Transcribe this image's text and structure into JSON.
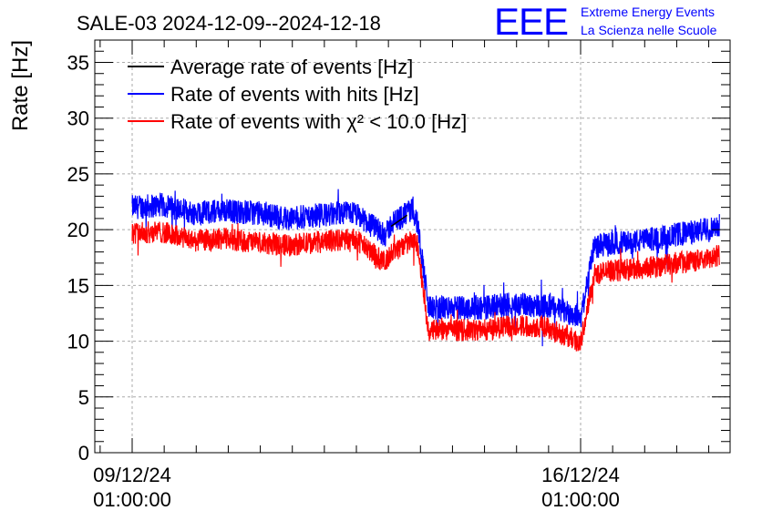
{
  "chart_data": {
    "type": "line",
    "title": "SALE-03 2024-12-09--2024-12-18",
    "ylabel": "Rate [Hz]",
    "xlabel": "",
    "ylim": [
      0,
      37
    ],
    "yticks": [
      0,
      5,
      10,
      15,
      20,
      25,
      30,
      35
    ],
    "grid": true,
    "legend_position": "top-left",
    "xlim": [
      "2024-12-08T11:00:00",
      "2024-12-18T09:00:00"
    ],
    "x_ticks": [
      {
        "x": "2024-12-09T01:00:00",
        "label_date": "09/12/24",
        "label_time": "01:00:00"
      },
      {
        "x": "2024-12-16T01:00:00",
        "label_date": "16/12/24",
        "label_time": "01:00:00"
      }
    ],
    "series": [
      {
        "name": "Rate of events with hits [Hz]",
        "color": "#0000ff",
        "x": [
          "2024-12-09T01:00:00",
          "2024-12-09T12:00:00",
          "2024-12-10T00:00:00",
          "2024-12-10T12:00:00",
          "2024-12-11T00:00:00",
          "2024-12-11T12:00:00",
          "2024-12-12T00:00:00",
          "2024-12-12T12:00:00",
          "2024-12-13T00:00:00",
          "2024-12-13T02:00:00",
          "2024-12-13T10:00:00",
          "2024-12-13T12:00:00",
          "2024-12-13T16:00:00",
          "2024-12-14T12:00:00",
          "2024-12-15T00:00:00",
          "2024-12-15T12:00:00",
          "2024-12-16T00:00:00",
          "2024-12-16T01:00:00",
          "2024-12-16T06:00:00",
          "2024-12-16T12:00:00",
          "2024-12-17T00:00:00",
          "2024-12-17T12:00:00",
          "2024-12-18T00:00:00",
          "2024-12-18T05:00:00"
        ],
        "values": [
          22.0,
          22.2,
          21.5,
          21.7,
          21.5,
          21.0,
          21.3,
          21.5,
          19.5,
          20.5,
          21.8,
          20.5,
          13.0,
          13.0,
          13.3,
          13.2,
          12.3,
          12.0,
          18.5,
          18.7,
          19.0,
          19.5,
          20.0,
          20.5
        ]
      },
      {
        "name": "Average rate of events [Hz]",
        "color": "#000000",
        "x": [
          "2024-12-13T02:00:00",
          "2024-12-13T08:00:00"
        ],
        "values": [
          20.3,
          21.3
        ]
      },
      {
        "name": "Rate of events with χ² < 10.0 [Hz]",
        "color": "#ff0000",
        "x": [
          "2024-12-09T01:00:00",
          "2024-12-09T12:00:00",
          "2024-12-10T00:00:00",
          "2024-12-10T12:00:00",
          "2024-12-11T00:00:00",
          "2024-12-11T12:00:00",
          "2024-12-12T00:00:00",
          "2024-12-12T12:00:00",
          "2024-12-13T00:00:00",
          "2024-12-13T02:00:00",
          "2024-12-13T10:00:00",
          "2024-12-13T12:00:00",
          "2024-12-13T16:00:00",
          "2024-12-14T12:00:00",
          "2024-12-15T00:00:00",
          "2024-12-15T12:00:00",
          "2024-12-16T00:00:00",
          "2024-12-16T01:00:00",
          "2024-12-16T06:00:00",
          "2024-12-16T12:00:00",
          "2024-12-17T00:00:00",
          "2024-12-17T12:00:00",
          "2024-12-18T00:00:00",
          "2024-12-18T05:00:00"
        ],
        "values": [
          19.7,
          19.8,
          19.0,
          19.2,
          18.8,
          18.6,
          18.9,
          19.2,
          17.0,
          18.0,
          19.0,
          18.5,
          11.0,
          11.0,
          11.4,
          11.3,
          10.0,
          9.7,
          16.0,
          16.3,
          16.5,
          17.0,
          17.3,
          17.7
        ]
      }
    ]
  },
  "branding": {
    "logo_text": "EEE",
    "line1": "Extreme Energy Events",
    "line2": "La Scienza nelle Scuole",
    "color": "#0000ff"
  }
}
